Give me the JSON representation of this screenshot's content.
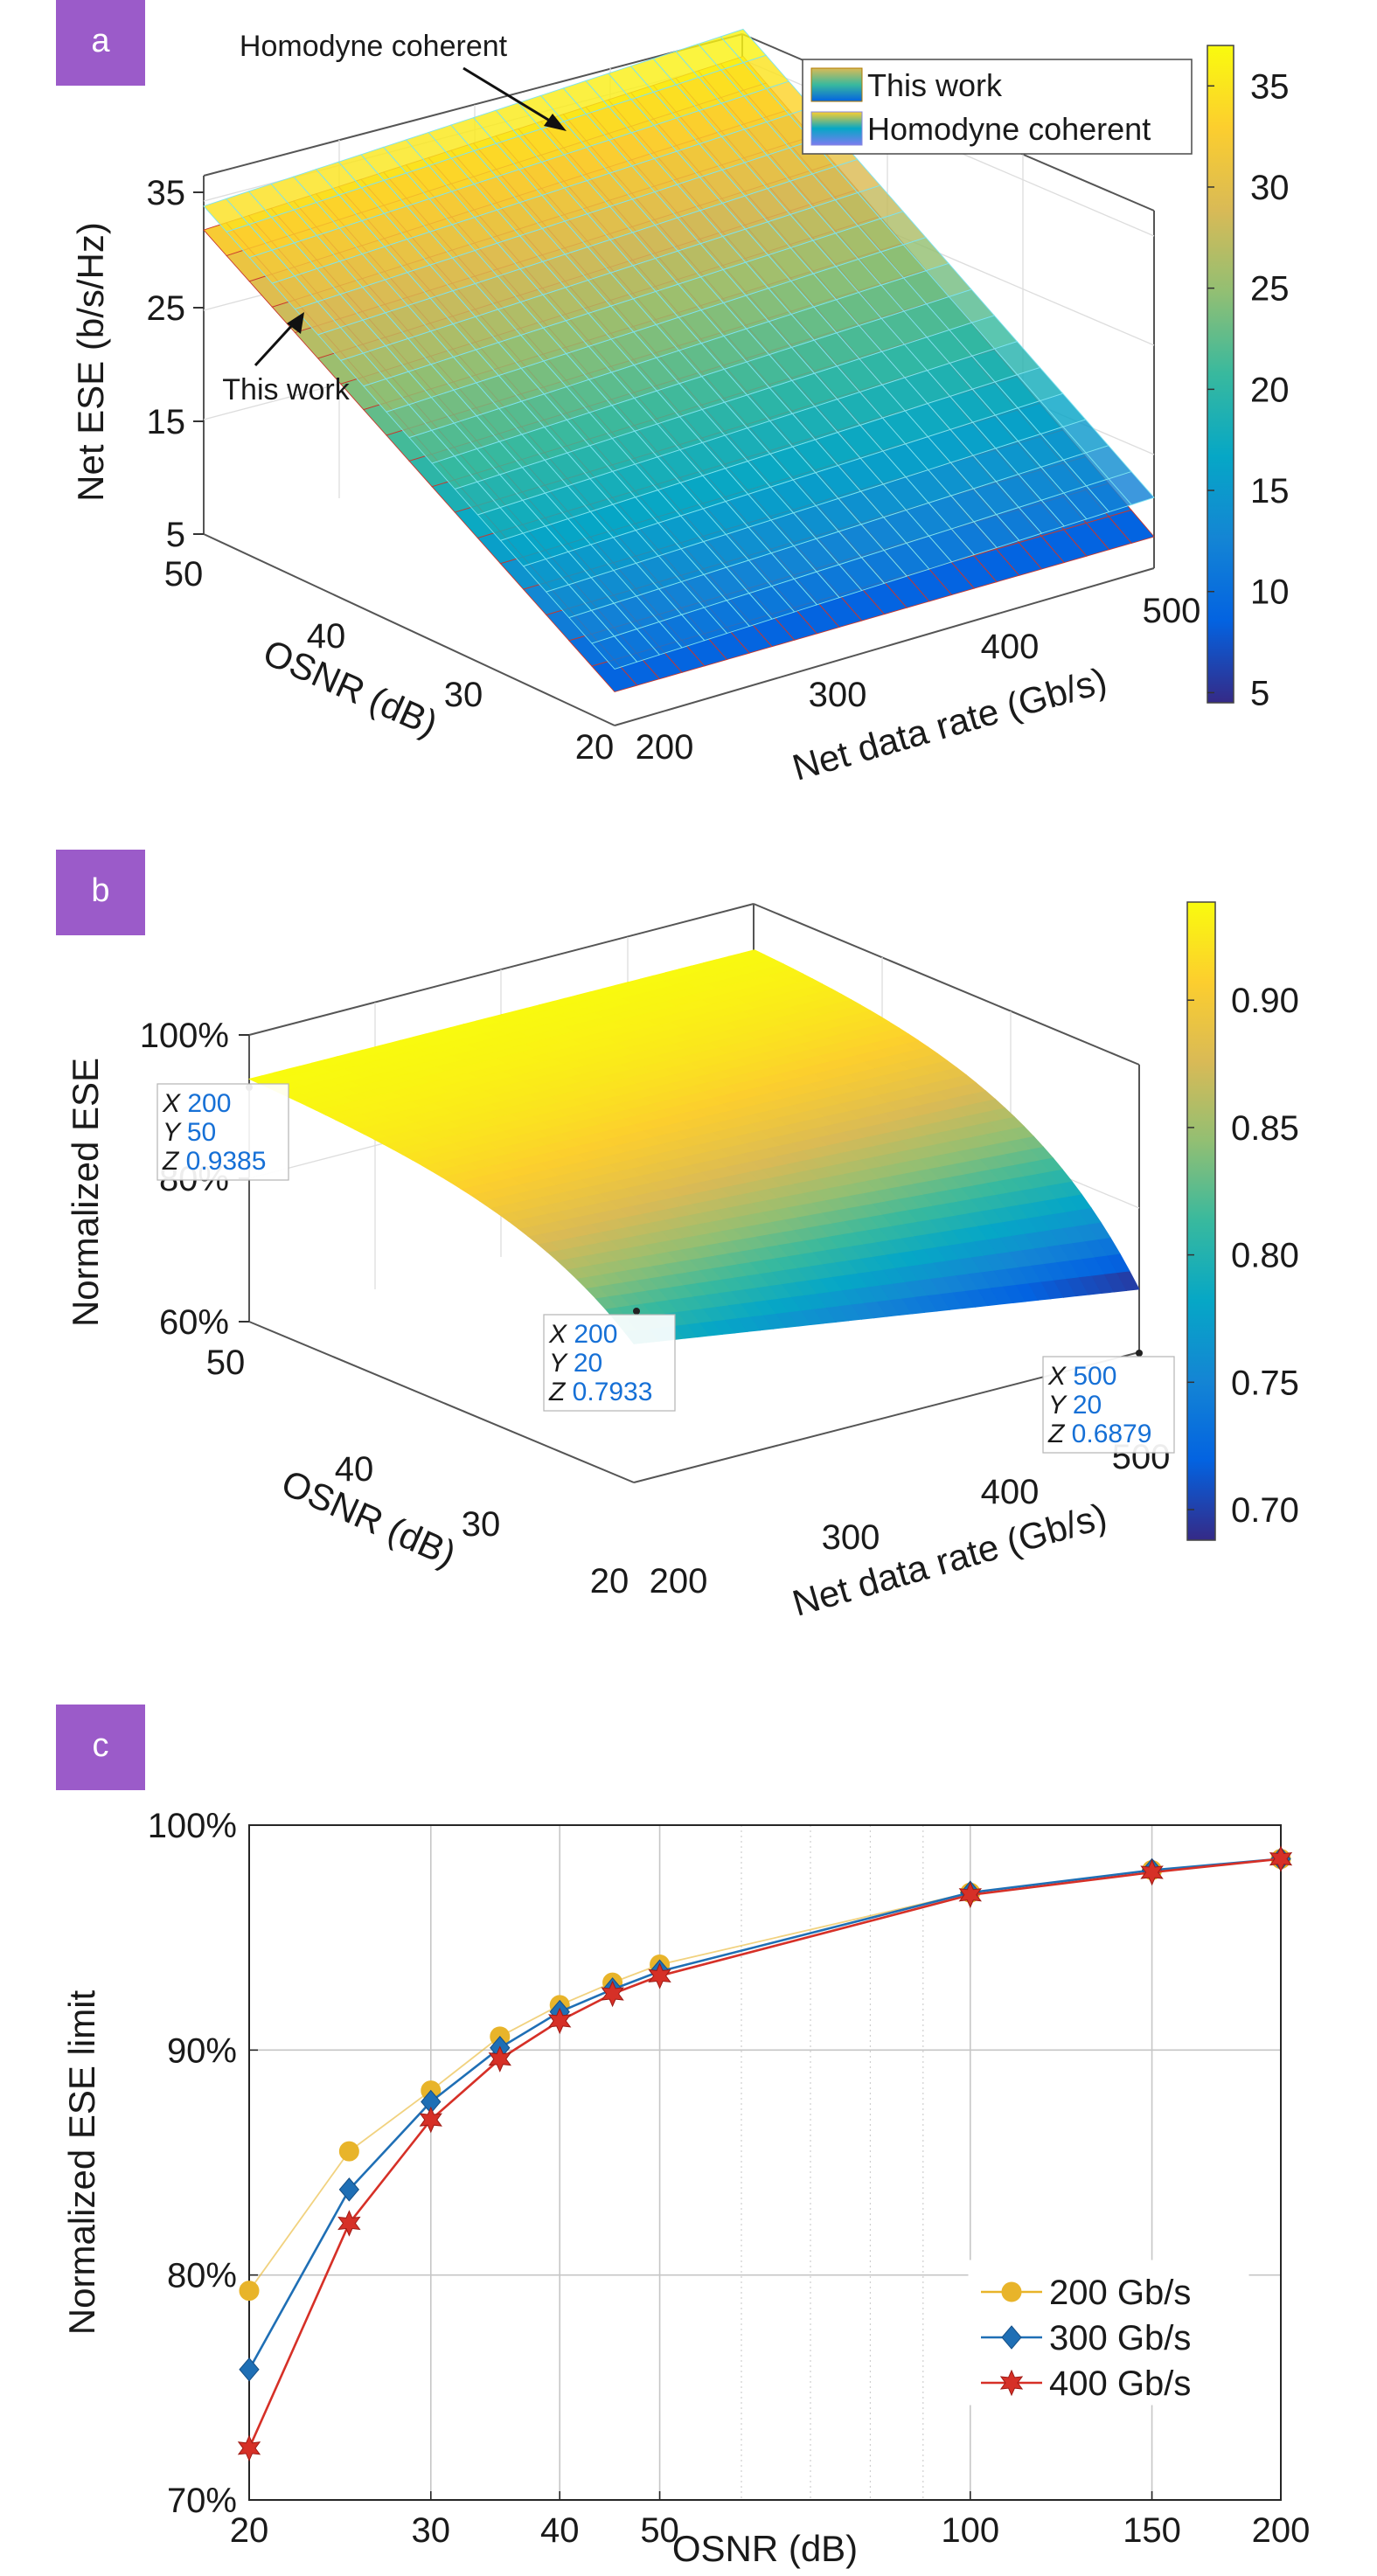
{
  "colors": {
    "panel_badge": "#9b5bc9",
    "panel_badge_text": "#ffffff",
    "datatip_value": "#1670d6",
    "series_200": "#e8b42a",
    "series_300": "#1f6fb5",
    "series_400": "#d63027",
    "parula": [
      "#352a87",
      "#0363e1",
      "#1485d4",
      "#06a7c6",
      "#38b99e",
      "#92bf73",
      "#d9ba56",
      "#fcce2e",
      "#f9fb0e"
    ]
  },
  "chart_data": [
    {
      "panel": "a",
      "type": "surface",
      "zlabel": "Net ESE (b/s/Hz)",
      "ylabel": "OSNR (dB)",
      "xlabel": "Net data rate (Gb/s)",
      "xlim": [
        200,
        500
      ],
      "ylim": [
        20,
        50
      ],
      "zlim": [
        5,
        38
      ],
      "x_ticks": [
        "200",
        "300",
        "400",
        "500"
      ],
      "y_ticks": [
        "20",
        "30",
        "40",
        "50"
      ],
      "z_ticks": [
        "5",
        "15",
        "25",
        "35"
      ],
      "colorbar": {
        "min": 4.5,
        "max": 37,
        "ticks": [
          "5",
          "10",
          "15",
          "20",
          "25",
          "30",
          "35"
        ]
      },
      "legend": [
        "This work",
        "Homodyne coherent"
      ],
      "legend_position": "top-right",
      "annotations": [
        "Homodyne\ncoherent",
        "This work"
      ],
      "series": [
        {
          "name": "Homodyne coherent",
          "corner_values": {
            "x200_y50": 35.2,
            "x500_y50": 37.0,
            "x200_y20": 10.2,
            "x500_y20": 11.5
          }
        },
        {
          "name": "This work",
          "corner_values": {
            "x200_y50": 33.0,
            "x500_y50": 34.5,
            "x200_y20": 8.1,
            "x500_y20": 7.9
          }
        }
      ]
    },
    {
      "panel": "b",
      "type": "surface",
      "zlabel": "Normalized ESE",
      "ylabel": "OSNR (dB)",
      "xlabel": "Net data rate (Gb/s)",
      "xlim": [
        200,
        500
      ],
      "ylim": [
        20,
        50
      ],
      "zlim": [
        0.6,
        1.0
      ],
      "x_ticks": [
        "200",
        "300",
        "400",
        "500"
      ],
      "y_ticks": [
        "20",
        "30",
        "40",
        "50"
      ],
      "z_ticks": [
        "60%",
        "80%",
        "100%"
      ],
      "colorbar": {
        "min": 0.688,
        "max": 0.9385,
        "ticks": [
          "0.70",
          "0.75",
          "0.80",
          "0.85",
          "0.90"
        ]
      },
      "corner_values": {
        "x200_y50": 0.9385,
        "x500_y50": 0.937,
        "x200_y20": 0.7933,
        "x500_y20": 0.6879
      },
      "datatips": [
        {
          "X": "200",
          "Y": "50",
          "Z": "0.9385"
        },
        {
          "X": "200",
          "Y": "20",
          "Z": "0.7933"
        },
        {
          "X": "500",
          "Y": "20",
          "Z": "0.6879"
        }
      ]
    },
    {
      "panel": "c",
      "type": "line",
      "xlabel": "OSNR (dB)",
      "ylabel": "Normalized ESE limit",
      "x_scale": "log",
      "xlim": [
        20,
        200
      ],
      "ylim": [
        70,
        100
      ],
      "x_ticks": [
        "20",
        "30",
        "40",
        "50",
        "100",
        "150",
        "200"
      ],
      "y_ticks": [
        "70%",
        "80%",
        "90%",
        "100%"
      ],
      "grid": true,
      "legend_position": "bottom-right",
      "x": [
        20,
        25,
        30,
        35,
        40,
        45,
        50,
        100,
        150,
        200
      ],
      "series": [
        {
          "name": "200 Gb/s",
          "marker": "circle",
          "values": [
            79.3,
            85.5,
            88.2,
            90.6,
            92.0,
            93.0,
            93.8,
            97.0,
            98.0,
            98.5
          ]
        },
        {
          "name": "300 Gb/s",
          "marker": "diamond",
          "values": [
            75.8,
            83.8,
            87.7,
            90.1,
            91.7,
            92.7,
            93.5,
            97.0,
            98.0,
            98.5
          ]
        },
        {
          "name": "400 Gb/s",
          "marker": "hexagram",
          "values": [
            72.3,
            82.3,
            86.9,
            89.6,
            91.3,
            92.5,
            93.3,
            96.9,
            97.9,
            98.5
          ]
        }
      ]
    }
  ]
}
